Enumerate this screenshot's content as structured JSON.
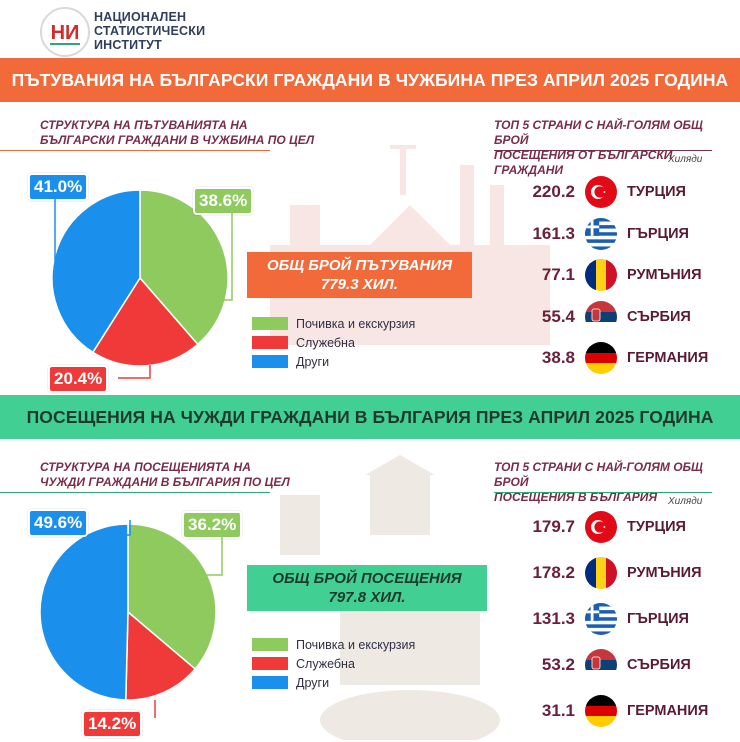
{
  "header": {
    "logo_lines": [
      "НАЦИОНАЛЕН",
      "СТАТИСТИЧЕСКИ",
      "ИНСТИТУТ"
    ],
    "logo_mark": "НИ"
  },
  "section1": {
    "banner": "ПЪТУВАНИЯ НА БЪЛГАРСКИ ГРАЖДАНИ В ЧУЖБИНА ПРЕЗ АПРИЛ 2025 ГОДИНА",
    "structure_title": [
      "СТРУКТУРА НА ПЪТУВАНИЯТА НА",
      "БЪЛГАРСКИ ГРАЖДАНИ В ЧУЖБИНА ПО ЦЕЛ"
    ],
    "top_title": [
      "ТОП 5 СТРАНИ С НАЙ-ГОЛЯМ ОБЩ БРОЙ",
      "ПОСЕЩЕНИЯ ОТ БЪЛГАРСКИ ГРАЖДАНИ"
    ],
    "units": "Хиляди",
    "total_label": "ОБЩ БРОЙ ПЪТУВАНИЯ",
    "total_value": "779.3 ХИЛ.",
    "countries": [
      {
        "value": "220.2",
        "name": "ТУРЦИЯ",
        "flag": "turkey-flag"
      },
      {
        "value": "161.3",
        "name": "ГЪРЦИЯ",
        "flag": "greece-flag"
      },
      {
        "value": "77.1",
        "name": "РУМЪНИЯ",
        "flag": "romania-flag"
      },
      {
        "value": "55.4",
        "name": "СЪРБИЯ",
        "flag": "serbia-flag"
      },
      {
        "value": "38.8",
        "name": "ГЕРМАНИЯ",
        "flag": "germany-flag"
      }
    ]
  },
  "section2": {
    "banner": "ПОСЕЩЕНИЯ НА ЧУЖДИ ГРАЖДАНИ В БЪЛГАРИЯ ПРЕЗ АПРИЛ 2025 ГОДИНА",
    "structure_title": [
      "СТРУКТУРА НА ПОСЕЩЕНИЯТА НА",
      "ЧУЖДИ ГРАЖДАНИ В БЪЛГАРИЯ ПО ЦЕЛ"
    ],
    "top_title": [
      "ТОП 5 СТРАНИ С НАЙ-ГОЛЯМ ОБЩ БРОЙ",
      "ПОСЕЩЕНИЯ В БЪЛГАРИЯ"
    ],
    "units": "Хиляди",
    "total_label": "ОБЩ БРОЙ ПОСЕЩЕНИЯ",
    "total_value": "797.8 ХИЛ.",
    "countries": [
      {
        "value": "179.7",
        "name": "ТУРЦИЯ",
        "flag": "turkey-flag"
      },
      {
        "value": "178.2",
        "name": "РУМЪНИЯ",
        "flag": "romania-flag"
      },
      {
        "value": "131.3",
        "name": "ГЪРЦИЯ",
        "flag": "greece-flag"
      },
      {
        "value": "53.2",
        "name": "СЪРБИЯ",
        "flag": "serbia-flag"
      },
      {
        "value": "31.1",
        "name": "ГЕРМАНИЯ",
        "flag": "germany-flag"
      }
    ]
  },
  "colors": {
    "orange": "#f36a3a",
    "green_banner": "#42cf94",
    "leisure": "#8fca5e",
    "business": "#f03a3a",
    "other": "#1a90ec",
    "maroon": "#6b2039"
  },
  "chart_data": [
    {
      "type": "pie",
      "categories": [
        "Почивка и екскурзия",
        "Служебна",
        "Други"
      ],
      "values": [
        38.6,
        20.4,
        41.0
      ],
      "labels": [
        "38.6%",
        "20.4%",
        "41.0%"
      ],
      "legend_position": "right"
    },
    {
      "type": "bar",
      "categories": [
        "ТУРЦИЯ",
        "ГЪРЦИЯ",
        "РУМЪНИЯ",
        "СЪРБИЯ",
        "ГЕРМАНИЯ"
      ],
      "values": [
        220.2,
        161.3,
        77.1,
        55.4,
        38.8
      ],
      "labels": [
        "220.2",
        "161.3",
        "77.1",
        "55.4",
        "38.8"
      ],
      "units": "Хиляди"
    },
    {
      "type": "pie",
      "categories": [
        "Почивка и екскурзия",
        "Служебна",
        "Други"
      ],
      "values": [
        36.2,
        14.2,
        49.6
      ],
      "labels": [
        "36.2%",
        "14.2%",
        "49.6%"
      ],
      "legend_position": "right"
    },
    {
      "type": "bar",
      "categories": [
        "ТУРЦИЯ",
        "РУМЪНИЯ",
        "ГЪРЦИЯ",
        "СЪРБИЯ",
        "ГЕРМАНИЯ"
      ],
      "values": [
        179.7,
        178.2,
        131.3,
        53.2,
        31.1
      ],
      "labels": [
        "179.7",
        "178.2",
        "131.3",
        "53.2",
        "31.1"
      ],
      "units": "Хиляди"
    }
  ]
}
